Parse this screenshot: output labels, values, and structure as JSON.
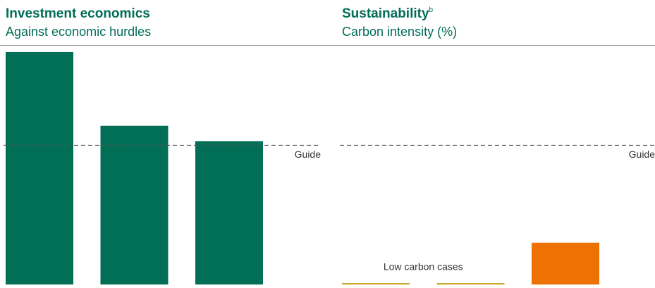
{
  "chart_data": [
    {
      "type": "bar",
      "title": "Investment economics",
      "subtitle": "Against economic hurdles",
      "categories": [
        null,
        null,
        null
      ],
      "values": [
        167,
        114,
        103
      ],
      "colors": [
        "#006f56",
        "#006f56",
        "#006f56"
      ],
      "ylim": [
        0,
        170
      ],
      "guide": {
        "label": "Guide",
        "value": 100
      }
    },
    {
      "type": "bar",
      "title": "Sustainability",
      "title_note": "b",
      "subtitle": "Carbon intensity (%)",
      "categories": [
        null,
        null,
        null
      ],
      "values": [
        1,
        1,
        30
      ],
      "colors": [
        "#c9a227",
        "#c9a227",
        "#ee7203"
      ],
      "ylim": [
        0,
        170
      ],
      "guide": {
        "label": "Guide",
        "value": 100
      },
      "annotation": "Low carbon cases"
    }
  ]
}
